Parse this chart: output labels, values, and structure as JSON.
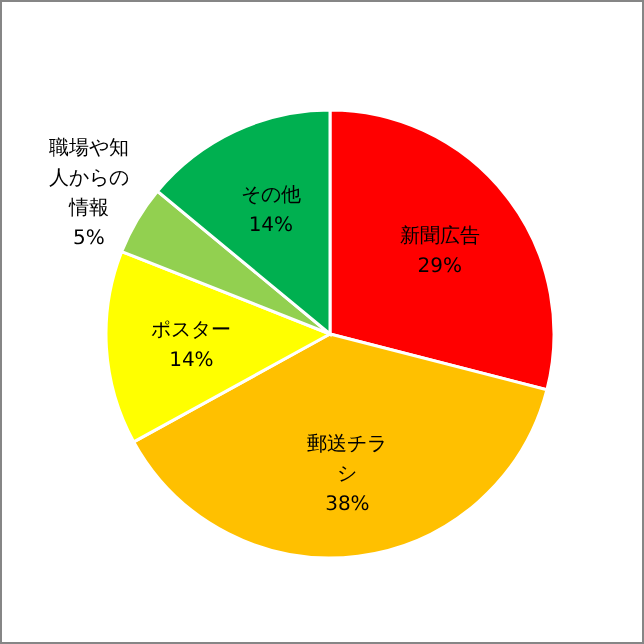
{
  "chart_data": {
    "type": "pie",
    "categories": [
      "新聞広告",
      "郵送チラシ",
      "ポスター",
      "職場や知人からの情報",
      "その他"
    ],
    "values": [
      29,
      38,
      14,
      5,
      14
    ],
    "value_labels": [
      "29%",
      "38%",
      "14%",
      "5%",
      "14%"
    ],
    "colors": [
      "#ff0000",
      "#ffc000",
      "#ffff00",
      "#92d050",
      "#00b050"
    ]
  }
}
